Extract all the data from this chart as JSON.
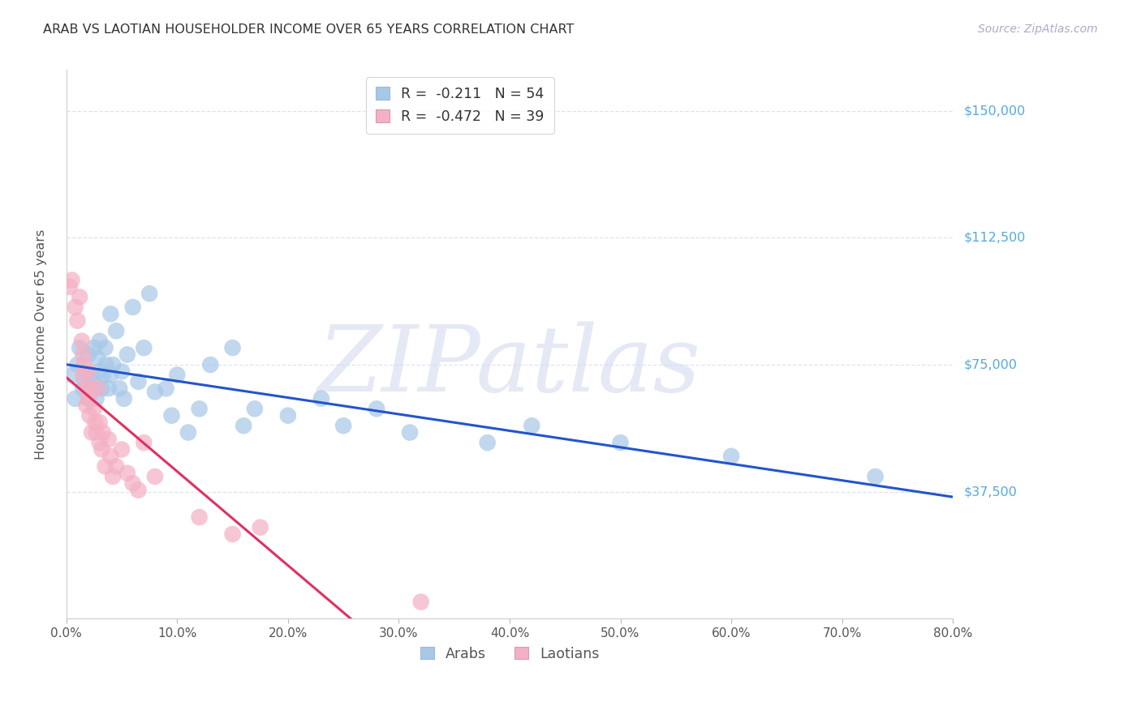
{
  "title": "ARAB VS LAOTIAN HOUSEHOLDER INCOME OVER 65 YEARS CORRELATION CHART",
  "source": "Source: ZipAtlas.com",
  "ylabel": "Householder Income Over 65 years",
  "ytick_labels": [
    "$37,500",
    "$75,000",
    "$112,500",
    "$150,000"
  ],
  "ytick_values": [
    37500,
    75000,
    112500,
    150000
  ],
  "xlim": [
    0.0,
    0.8
  ],
  "ylim": [
    0,
    162000
  ],
  "arab_R": "-0.211",
  "arab_N": "54",
  "laotian_R": "-0.472",
  "laotian_N": "39",
  "arab_color": "#a8c8e8",
  "arab_line_color": "#2255cc",
  "laotian_color": "#f4b0c4",
  "laotian_line_color": "#e03060",
  "background_color": "#ffffff",
  "grid_color": "#dde4f0",
  "title_color": "#333333",
  "source_color": "#aaaacc",
  "ytick_color": "#55aadd",
  "watermark_color": "#d0d8ee",
  "arab_x": [
    0.005,
    0.008,
    0.01,
    0.012,
    0.015,
    0.016,
    0.018,
    0.02,
    0.02,
    0.022,
    0.023,
    0.025,
    0.025,
    0.027,
    0.028,
    0.03,
    0.03,
    0.032,
    0.033,
    0.035,
    0.036,
    0.038,
    0.04,
    0.04,
    0.042,
    0.045,
    0.048,
    0.05,
    0.052,
    0.055,
    0.06,
    0.065,
    0.07,
    0.075,
    0.08,
    0.09,
    0.095,
    0.1,
    0.11,
    0.12,
    0.13,
    0.15,
    0.16,
    0.17,
    0.2,
    0.23,
    0.25,
    0.28,
    0.31,
    0.38,
    0.42,
    0.5,
    0.6,
    0.73
  ],
  "arab_y": [
    72000,
    65000,
    75000,
    80000,
    68000,
    70000,
    73000,
    78000,
    65000,
    72000,
    68000,
    80000,
    70000,
    65000,
    77000,
    82000,
    73000,
    68000,
    72000,
    80000,
    75000,
    68000,
    90000,
    72000,
    75000,
    85000,
    68000,
    73000,
    65000,
    78000,
    92000,
    70000,
    80000,
    96000,
    67000,
    68000,
    60000,
    72000,
    55000,
    62000,
    75000,
    80000,
    57000,
    62000,
    60000,
    65000,
    57000,
    62000,
    55000,
    52000,
    57000,
    52000,
    48000,
    42000
  ],
  "laotian_x": [
    0.003,
    0.005,
    0.008,
    0.01,
    0.012,
    0.014,
    0.015,
    0.015,
    0.016,
    0.018,
    0.018,
    0.02,
    0.02,
    0.021,
    0.022,
    0.023,
    0.025,
    0.026,
    0.027,
    0.028,
    0.03,
    0.03,
    0.032,
    0.033,
    0.035,
    0.038,
    0.04,
    0.042,
    0.045,
    0.05,
    0.055,
    0.06,
    0.065,
    0.07,
    0.08,
    0.12,
    0.15,
    0.175,
    0.32
  ],
  "laotian_y": [
    98000,
    100000,
    92000,
    88000,
    95000,
    82000,
    78000,
    72000,
    75000,
    68000,
    63000,
    73000,
    65000,
    60000,
    68000,
    55000,
    62000,
    58000,
    55000,
    68000,
    52000,
    58000,
    50000,
    55000,
    45000,
    53000,
    48000,
    42000,
    45000,
    50000,
    43000,
    40000,
    38000,
    52000,
    42000,
    30000,
    25000,
    27000,
    5000
  ]
}
